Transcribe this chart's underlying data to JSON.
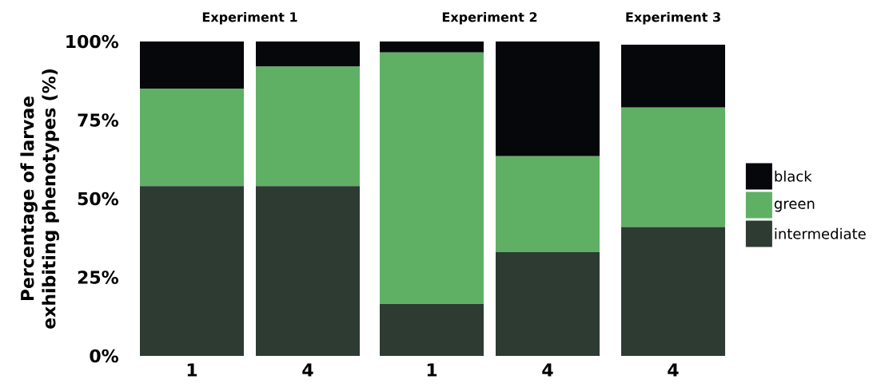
{
  "chart_data": [
    {
      "type": "bar",
      "stacked": true,
      "title": "Experiment 1",
      "ylabel": "Percentage of larvae exhibiting phenotypes (%)",
      "categories": [
        "1",
        "4"
      ],
      "ylim": [
        0,
        100
      ],
      "yticks": [
        {
          "value": 0,
          "label": "0%"
        },
        {
          "value": 25,
          "label": "25%"
        },
        {
          "value": 50,
          "label": "50%"
        },
        {
          "value": 75,
          "label": "75%"
        },
        {
          "value": 100,
          "label": "100%"
        }
      ],
      "series": [
        {
          "color": "#2d3b33",
          "values": [
            54,
            54
          ]
        },
        {
          "color": "#5fb064",
          "values": [
            31,
            38
          ]
        },
        {
          "color": "#05070b",
          "values": [
            15,
            8
          ]
        }
      ]
    },
    {
      "type": "bar",
      "stacked": true,
      "title": "Experiment 2",
      "categories": [
        "1",
        "4"
      ],
      "ylim": [
        0,
        100
      ],
      "tick_labels": "x",
      "yticks": [
        {
          "value": 0,
          "label": null
        },
        {
          "value": 25,
          "label": null
        },
        {
          "value": 50,
          "label": null
        },
        {
          "value": 75,
          "label": null
        },
        {
          "value": 100,
          "label": null
        }
      ],
      "series": [
        {
          "color": "#2d3b33",
          "values": [
            16.5,
            33
          ]
        },
        {
          "color": "#5fb064",
          "values": [
            80,
            30.5
          ]
        },
        {
          "color": "#05070b",
          "values": [
            3.5,
            36.5
          ]
        }
      ]
    },
    {
      "type": "bar",
      "stacked": true,
      "title": "Experiment 3",
      "categories": [
        "4"
      ],
      "ylim": [
        0,
        100
      ],
      "tick_labels": "x",
      "legend": "right",
      "yticks": [
        {
          "value": 0,
          "label": null
        },
        {
          "value": 25,
          "label": null
        },
        {
          "value": 50,
          "label": null
        },
        {
          "value": 75,
          "label": null
        },
        {
          "value": 100,
          "label": null
        }
      ],
      "series": [
        {
          "name": "intermediate",
          "color": "#2d3b33",
          "values": [
            41
          ]
        },
        {
          "name": "green",
          "color": "#5fb064",
          "values": [
            38
          ]
        },
        {
          "name": "black",
          "color": "#05070b",
          "values": [
            20
          ]
        }
      ]
    }
  ]
}
